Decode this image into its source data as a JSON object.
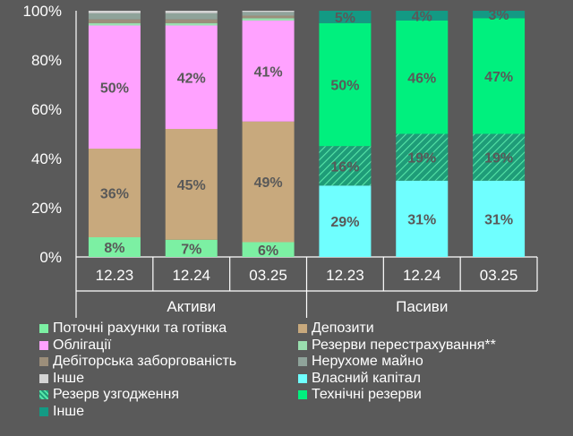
{
  "chart_data": {
    "type": "bar",
    "stacked": true,
    "normalized": true,
    "ylim": [
      0,
      100
    ],
    "yticks": [
      "0%",
      "20%",
      "40%",
      "60%",
      "80%",
      "100%"
    ],
    "grid": false,
    "groups": [
      {
        "label": "Активи",
        "categories": [
          "12.23",
          "12.24",
          "03.25"
        ],
        "series": [
          {
            "name": "Поточні рахунки та готівка",
            "color": "#7CF0A3",
            "pattern": false,
            "values": [
              8,
              7,
              6
            ],
            "labels": [
              "8%",
              "7%",
              "6%"
            ]
          },
          {
            "name": "Депозити",
            "color": "#C8A97D",
            "pattern": false,
            "values": [
              36,
              45,
              49
            ],
            "labels": [
              "36%",
              "45%",
              "49%"
            ]
          },
          {
            "name": "Облігації",
            "color": "#FFA2FF",
            "pattern": false,
            "values": [
              50,
              42,
              41
            ],
            "labels": [
              "50%",
              "42%",
              "41%"
            ]
          },
          {
            "name": "Резерви перестрахування**",
            "color": "#9ADFAF",
            "pattern": false,
            "values": [
              1,
              1,
              1
            ],
            "labels": [
              "",
              "",
              ""
            ]
          },
          {
            "name": "Дебіторська заборгованість",
            "color": "#9C8E7A",
            "pattern": false,
            "values": [
              1.5,
              1.5,
              1
            ],
            "labels": [
              "",
              "",
              ""
            ]
          },
          {
            "name": "Нерухоме майно",
            "color": "#8FA39A",
            "pattern": false,
            "values": [
              2.5,
              2.5,
              1.5
            ],
            "labels": [
              "",
              "",
              ""
            ]
          },
          {
            "name": "Інше",
            "color": "#D4D4D4",
            "pattern": false,
            "values": [
              1,
              1,
              0.5
            ],
            "labels": [
              "",
              "",
              ""
            ]
          }
        ]
      },
      {
        "label": "Пасиви",
        "categories": [
          "12.23",
          "12.24",
          "03.25"
        ],
        "series": [
          {
            "name": "Власний капітал",
            "color": "#6FFFFF",
            "pattern": false,
            "values": [
              29,
              31,
              31
            ],
            "labels": [
              "29%",
              "31%",
              "31%"
            ]
          },
          {
            "name": "Резерв узгодження",
            "color": "#1E9C78",
            "pattern": true,
            "values": [
              16,
              19,
              19
            ],
            "labels": [
              "16%",
              "19%",
              "19%"
            ]
          },
          {
            "name": "Технічні резерви",
            "color": "#00F07E",
            "pattern": false,
            "values": [
              50,
              46,
              47
            ],
            "labels": [
              "50%",
              "46%",
              "47%"
            ]
          },
          {
            "name": "Інше",
            "color": "#139A84",
            "pattern": false,
            "values": [
              5,
              4,
              3
            ],
            "labels": [
              "5%",
              "4%",
              "3%"
            ]
          }
        ]
      }
    ],
    "legend": {
      "position": "bottom",
      "items": [
        {
          "name": "Поточні рахунки та готівка",
          "color": "#7CF0A3",
          "pattern": false
        },
        {
          "name": "Депозити",
          "color": "#C8A97D",
          "pattern": false
        },
        {
          "name": "Облігації",
          "color": "#FFA2FF",
          "pattern": false
        },
        {
          "name": "Резерви перестрахування**",
          "color": "#9ADFAF",
          "pattern": false
        },
        {
          "name": "Дебіторська заборгованість",
          "color": "#9C8E7A",
          "pattern": false
        },
        {
          "name": "Нерухоме майно",
          "color": "#8FA39A",
          "pattern": false
        },
        {
          "name": "Інше",
          "color": "#D4D4D4",
          "pattern": false
        },
        {
          "name": "Власний капітал",
          "color": "#6FFFFF",
          "pattern": false
        },
        {
          "name": "Резерв узгодження",
          "color": "#1E9C78",
          "pattern": true
        },
        {
          "name": "Технічні резерви",
          "color": "#00F07E",
          "pattern": false
        },
        {
          "name": "Інше",
          "color": "#139A84",
          "pattern": false
        }
      ]
    }
  }
}
